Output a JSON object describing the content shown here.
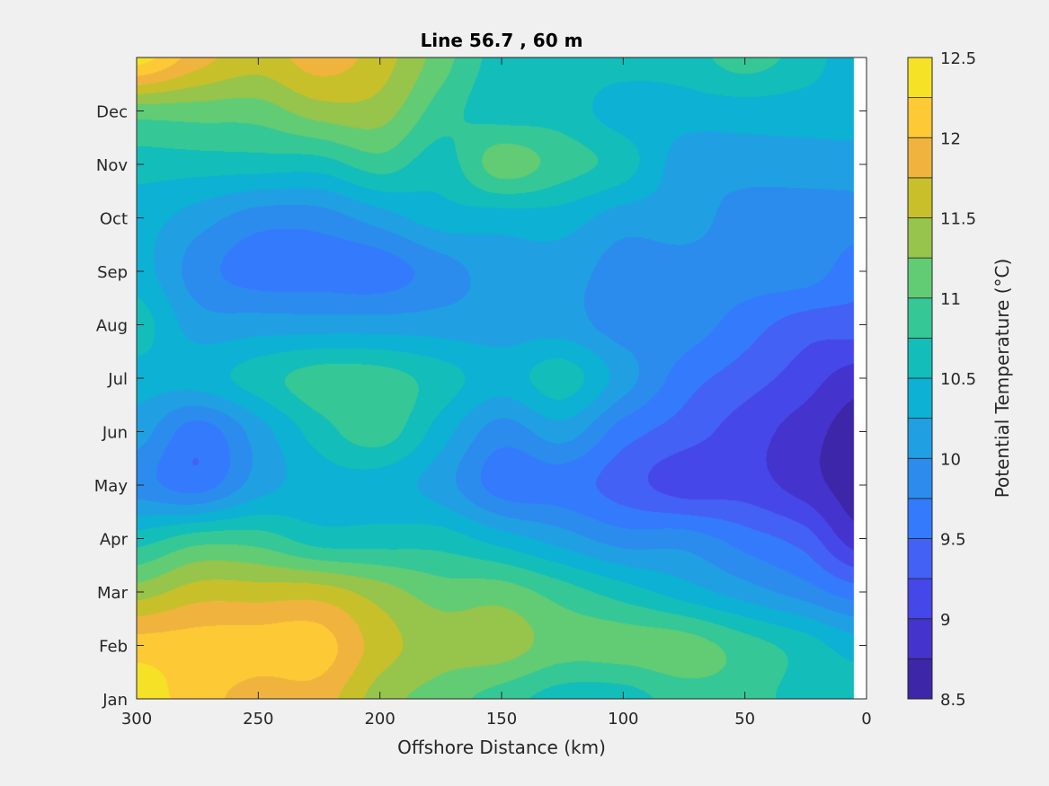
{
  "chart_data": {
    "type": "heatmap",
    "subtype": "filled-contour",
    "title": "Line 56.7 , 60 m",
    "xlabel": "Offshore Distance (km)",
    "ylabel": "",
    "colorbar_label": "Potential Temperature (°C)",
    "xlim": [
      300,
      0
    ],
    "x_reversed": true,
    "ylim": [
      0,
      12
    ],
    "xticks": [
      300,
      250,
      200,
      150,
      100,
      50,
      0
    ],
    "xtick_labels": [
      "300",
      "250",
      "200",
      "150",
      "100",
      "50",
      "0"
    ],
    "yticks": [
      0,
      1,
      2,
      3,
      4,
      5,
      6,
      7,
      8,
      9,
      10,
      11
    ],
    "ytick_labels": [
      "Jan",
      "Feb",
      "Mar",
      "Apr",
      "May",
      "Jun",
      "Jul",
      "Aug",
      "Sep",
      "Oct",
      "Nov",
      "Dec"
    ],
    "clim": [
      8.5,
      12.5
    ],
    "levels_step": 0.25,
    "colorbar_ticks": [
      8.5,
      9,
      9.5,
      10,
      10.5,
      11,
      11.5,
      12,
      12.5
    ],
    "colorbar_tick_labels": [
      "8.5",
      "9",
      "9.5",
      "10",
      "10.5",
      "11",
      "11.5",
      "12",
      "12.5"
    ],
    "colormap": [
      "#3e26a8",
      "#4433cc",
      "#4647e8",
      "#4361f5",
      "#337bfc",
      "#2b8ced",
      "#20a0e2",
      "#0db1d4",
      "#13bdb9",
      "#36c796",
      "#62cc74",
      "#97c44b",
      "#c8c02a",
      "#f0b43e",
      "#fdc935",
      "#f5e226"
    ],
    "grid_x_km": [
      300,
      275,
      250,
      225,
      200,
      175,
      150,
      125,
      100,
      75,
      50,
      25,
      5
    ],
    "grid_month": [
      0,
      1,
      2,
      3,
      4,
      5,
      6,
      7,
      8,
      9,
      10,
      11,
      12
    ],
    "z": [
      [
        12.375,
        12.125,
        11.875,
        11.875,
        11.375,
        11.125,
        10.875,
        10.625,
        10.625,
        10.875,
        10.875,
        10.625,
        10.625
      ],
      [
        12.125,
        12.125,
        12.125,
        12.125,
        11.625,
        11.375,
        11.375,
        11.125,
        11.125,
        11.125,
        10.875,
        10.625,
        10.375
      ],
      [
        11.375,
        11.625,
        11.625,
        11.625,
        11.375,
        11.125,
        11.125,
        10.875,
        10.625,
        10.375,
        10.125,
        9.875,
        9.625
      ],
      [
        10.625,
        10.875,
        10.875,
        10.625,
        10.625,
        10.625,
        10.375,
        10.125,
        9.875,
        9.875,
        9.625,
        9.375,
        8.875
      ],
      [
        9.875,
        9.625,
        10.125,
        10.375,
        10.375,
        10.125,
        9.625,
        9.625,
        9.375,
        9.125,
        9.125,
        8.875,
        8.625
      ],
      [
        10.125,
        9.625,
        10.125,
        10.625,
        10.875,
        10.375,
        9.875,
        10.125,
        9.625,
        9.375,
        9.125,
        8.875,
        8.625
      ],
      [
        10.375,
        10.375,
        10.625,
        10.875,
        10.875,
        10.625,
        10.375,
        10.625,
        10.125,
        9.625,
        9.375,
        9.125,
        8.875
      ],
      [
        10.625,
        10.125,
        10.125,
        10.125,
        10.125,
        10.125,
        10.125,
        10.125,
        9.875,
        9.875,
        9.625,
        9.375,
        9.375
      ],
      [
        10.375,
        9.875,
        9.625,
        9.625,
        9.625,
        9.875,
        10.125,
        10.125,
        9.875,
        9.875,
        9.875,
        9.875,
        9.625
      ],
      [
        10.375,
        10.125,
        9.875,
        9.875,
        10.125,
        10.375,
        10.375,
        10.375,
        10.125,
        10.125,
        9.875,
        9.875,
        9.875
      ],
      [
        10.625,
        10.625,
        10.625,
        10.625,
        10.875,
        10.625,
        11.125,
        10.875,
        10.625,
        10.125,
        10.125,
        10.125,
        10.125
      ],
      [
        11.125,
        11.125,
        11.125,
        11.375,
        11.375,
        10.875,
        10.625,
        10.625,
        10.375,
        10.375,
        10.375,
        10.375,
        10.375
      ],
      [
        12.375,
        11.875,
        11.625,
        11.875,
        11.625,
        11.125,
        10.625,
        10.625,
        10.625,
        10.625,
        10.875,
        10.625,
        10.375
      ]
    ]
  }
}
